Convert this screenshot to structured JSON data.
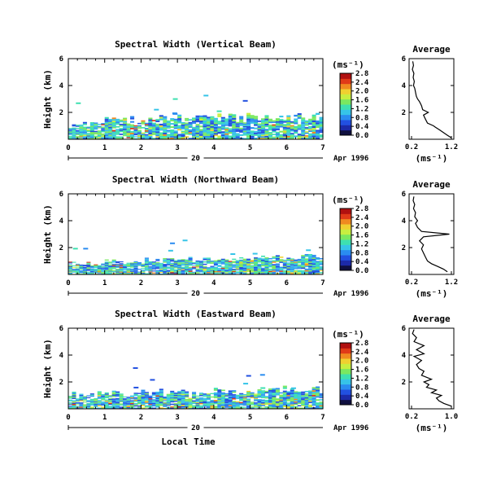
{
  "chart_data": [
    {
      "type": "heatmap",
      "title": "Spectral Width (Vertical Beam)",
      "ylabel": "Height (km)",
      "xlim": [
        0,
        7
      ],
      "ylim": [
        0,
        6
      ],
      "x_ticks": [
        "0",
        "1",
        "2",
        "3",
        "4",
        "5",
        "6",
        "7"
      ],
      "y_ticks": [
        "2",
        "4",
        "6"
      ],
      "day_label": "20",
      "date_label": "Apr 1996",
      "colorbar": {
        "unit": "(ms⁻¹)",
        "ticks": [
          "0.0",
          "0.4",
          "0.8",
          "1.2",
          "1.6",
          "2.0",
          "2.4",
          "2.8"
        ]
      },
      "data_top_km": 1.5,
      "average": {
        "title": "Average",
        "xlabel": "(ms⁻¹)",
        "x_ticks": [
          "0.2",
          "1.2"
        ],
        "xlim": [
          0.2,
          1.2
        ],
        "y_ticks": [
          "2",
          "4",
          "6"
        ],
        "ylim": [
          0,
          6
        ],
        "profile": [
          [
            1.2,
            0.1
          ],
          [
            1.1,
            0.3
          ],
          [
            1.0,
            0.5
          ],
          [
            0.9,
            0.7
          ],
          [
            0.8,
            0.9
          ],
          [
            0.75,
            1.0
          ],
          [
            0.6,
            1.2
          ],
          [
            0.55,
            1.5
          ],
          [
            0.5,
            1.8
          ],
          [
            0.62,
            2.0
          ],
          [
            0.48,
            2.2
          ],
          [
            0.45,
            2.5
          ],
          [
            0.4,
            2.8
          ],
          [
            0.35,
            3.0
          ],
          [
            0.32,
            3.2
          ],
          [
            0.3,
            3.5
          ],
          [
            0.28,
            3.8
          ],
          [
            0.25,
            4.0
          ],
          [
            0.27,
            4.3
          ],
          [
            0.24,
            4.6
          ],
          [
            0.26,
            4.9
          ],
          [
            0.22,
            5.2
          ],
          [
            0.25,
            5.5
          ],
          [
            0.23,
            5.8
          ]
        ]
      }
    },
    {
      "type": "heatmap",
      "title": "Spectral Width (Northward Beam)",
      "ylabel": "Height (km)",
      "xlim": [
        0,
        7
      ],
      "ylim": [
        0,
        6
      ],
      "x_ticks": [
        "0",
        "1",
        "2",
        "3",
        "4",
        "5",
        "6",
        "7"
      ],
      "y_ticks": [
        "2",
        "4",
        "6"
      ],
      "day_label": "20",
      "date_label": "Apr 1996",
      "colorbar": {
        "unit": "(ms⁻¹)",
        "ticks": [
          "0.0",
          "0.4",
          "0.8",
          "1.2",
          "1.6",
          "2.0",
          "2.4",
          "2.8"
        ]
      },
      "data_top_km": 1.0,
      "average": {
        "title": "Average",
        "xlabel": "(ms⁻¹)",
        "x_ticks": [
          "0.2",
          "1.2"
        ],
        "xlim": [
          0.2,
          1.2
        ],
        "y_ticks": [
          "2",
          "4",
          "6"
        ],
        "ylim": [
          0,
          6
        ],
        "profile": [
          [
            1.1,
            0.2
          ],
          [
            1.0,
            0.4
          ],
          [
            0.85,
            0.6
          ],
          [
            0.7,
            0.8
          ],
          [
            0.6,
            1.0
          ],
          [
            0.55,
            1.3
          ],
          [
            0.5,
            1.6
          ],
          [
            0.45,
            1.9
          ],
          [
            0.5,
            2.2
          ],
          [
            0.4,
            2.5
          ],
          [
            0.5,
            2.8
          ],
          [
            1.15,
            3.0
          ],
          [
            0.45,
            3.2
          ],
          [
            0.35,
            3.5
          ],
          [
            0.3,
            3.8
          ],
          [
            0.35,
            4.0
          ],
          [
            0.28,
            4.3
          ],
          [
            0.3,
            4.6
          ],
          [
            0.25,
            4.9
          ],
          [
            0.28,
            5.2
          ],
          [
            0.24,
            5.5
          ],
          [
            0.26,
            5.8
          ]
        ]
      }
    },
    {
      "type": "heatmap",
      "title": "Spectral Width (Eastward Beam)",
      "ylabel": "Height (km)",
      "xlabel": "Local Time",
      "xlim": [
        0,
        7
      ],
      "ylim": [
        0,
        6
      ],
      "x_ticks": [
        "0",
        "1",
        "2",
        "3",
        "4",
        "5",
        "6",
        "7"
      ],
      "y_ticks": [
        "2",
        "4",
        "6"
      ],
      "day_label": "20",
      "date_label": "Apr 1996",
      "colorbar": {
        "unit": "(ms⁻¹)",
        "ticks": [
          "0.0",
          "0.4",
          "0.8",
          "1.2",
          "1.6",
          "2.0",
          "2.4",
          "2.8"
        ]
      },
      "data_top_km": 1.2,
      "average": {
        "title": "Average",
        "xlabel": "(ms⁻¹)",
        "x_ticks": [
          "0.2",
          "1.0"
        ],
        "xlim": [
          0.2,
          1.0
        ],
        "y_ticks": [
          "2",
          "4",
          "6"
        ],
        "ylim": [
          0,
          6
        ],
        "profile": [
          [
            1.0,
            0.2
          ],
          [
            0.85,
            0.4
          ],
          [
            0.75,
            0.6
          ],
          [
            0.7,
            0.8
          ],
          [
            0.8,
            1.0
          ],
          [
            0.6,
            1.2
          ],
          [
            0.7,
            1.4
          ],
          [
            0.5,
            1.6
          ],
          [
            0.55,
            1.8
          ],
          [
            0.45,
            2.0
          ],
          [
            0.6,
            2.2
          ],
          [
            0.4,
            2.5
          ],
          [
            0.45,
            2.8
          ],
          [
            0.35,
            3.0
          ],
          [
            0.3,
            3.3
          ],
          [
            0.4,
            3.6
          ],
          [
            0.25,
            3.9
          ],
          [
            0.45,
            4.1
          ],
          [
            0.3,
            4.4
          ],
          [
            0.45,
            4.7
          ],
          [
            0.25,
            5.0
          ],
          [
            0.3,
            5.3
          ],
          [
            0.22,
            5.6
          ],
          [
            0.25,
            5.9
          ]
        ]
      }
    }
  ]
}
